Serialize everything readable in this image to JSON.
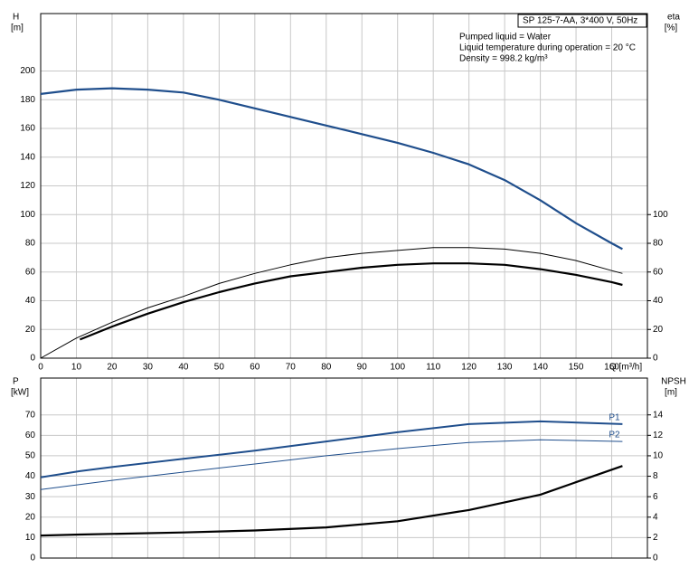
{
  "charts": [
    {
      "type": "line",
      "title": "SP 125-7-AA, 3*400 V, 50Hz",
      "notes": [
        "Pumped liquid = Water",
        "Liquid temperature during operation = 20 °C",
        "Density = 998.2 kg/m³"
      ],
      "ylabel": "H",
      "yunit": "[m]",
      "y2label": "eta",
      "y2unit": "[%]",
      "xlabel": "Q [m³/h]",
      "xlim": [
        0,
        170
      ],
      "xticks": [
        0,
        10,
        20,
        30,
        40,
        50,
        60,
        70,
        80,
        90,
        100,
        110,
        120,
        130,
        140,
        150,
        160
      ],
      "ylim": [
        0,
        240
      ],
      "yticks": [
        0,
        20,
        40,
        60,
        80,
        100,
        120,
        140,
        160,
        180,
        200
      ],
      "y2lim": [
        0,
        240
      ],
      "y2ticks": [
        0,
        20,
        40,
        60,
        80,
        100
      ],
      "grid": true,
      "series": [
        {
          "color": "#1f4e8c",
          "width": 2.2,
          "x": [
            0,
            10,
            20,
            30,
            40,
            50,
            60,
            70,
            80,
            90,
            100,
            110,
            120,
            130,
            140,
            150,
            160,
            163
          ],
          "values": [
            184,
            187,
            188,
            187,
            185,
            180,
            174,
            168,
            162,
            156,
            150,
            143,
            135,
            124,
            110,
            94,
            80,
            76
          ]
        },
        {
          "color": "#000000",
          "width": 1,
          "axis": "y2",
          "x": [
            0,
            10,
            20,
            30,
            40,
            50,
            60,
            70,
            80,
            90,
            100,
            110,
            120,
            130,
            140,
            150,
            160,
            163
          ],
          "values": [
            0,
            14,
            25,
            35,
            43,
            52,
            59,
            65,
            70,
            73,
            75,
            77,
            77,
            76,
            73,
            68,
            61,
            59
          ]
        },
        {
          "color": "#000000",
          "width": 2.2,
          "axis": "y2",
          "x": [
            11,
            20,
            30,
            40,
            50,
            60,
            70,
            80,
            90,
            100,
            110,
            120,
            130,
            140,
            150,
            160,
            163
          ],
          "values": [
            13,
            22,
            31,
            39,
            46,
            52,
            57,
            60,
            63,
            65,
            66,
            66,
            65,
            62,
            58,
            53,
            51
          ]
        }
      ]
    },
    {
      "type": "line",
      "ylabel": "P",
      "yunit": "[kW]",
      "y2label": "NPSH",
      "y2unit": "[m]",
      "xlim": [
        0,
        170
      ],
      "xticks": [
        0,
        10,
        20,
        30,
        40,
        50,
        60,
        70,
        80,
        90,
        100,
        110,
        120,
        130,
        140,
        150,
        160
      ],
      "ylim": [
        0,
        88
      ],
      "yticks": [
        0,
        10,
        20,
        30,
        40,
        50,
        60,
        70
      ],
      "y2lim": [
        0,
        17.6
      ],
      "y2ticks": [
        0,
        2,
        4,
        6,
        8,
        10,
        12,
        14
      ],
      "grid": true,
      "series": [
        {
          "name": "P1",
          "color": "#1f4e8c",
          "width": 2,
          "x": [
            0,
            11,
            20,
            40,
            60,
            80,
            100,
            120,
            140,
            163
          ],
          "values": [
            39.5,
            42.5,
            44.5,
            48.5,
            52.5,
            57,
            61.5,
            65.5,
            66.8,
            65.5
          ]
        },
        {
          "name": "P2",
          "color": "#1f4e8c",
          "width": 1,
          "x": [
            0,
            20,
            40,
            60,
            80,
            100,
            120,
            140,
            163
          ],
          "values": [
            33.5,
            38,
            42,
            46,
            50,
            53.5,
            56.5,
            57.8,
            57
          ]
        },
        {
          "color": "#000000",
          "width": 2.2,
          "axis": "y2",
          "x": [
            0,
            11,
            40,
            60,
            80,
            100,
            120,
            140,
            163
          ],
          "values": [
            2.2,
            2.3,
            2.5,
            2.7,
            3.0,
            3.6,
            4.7,
            6.2,
            9
          ]
        }
      ]
    }
  ]
}
